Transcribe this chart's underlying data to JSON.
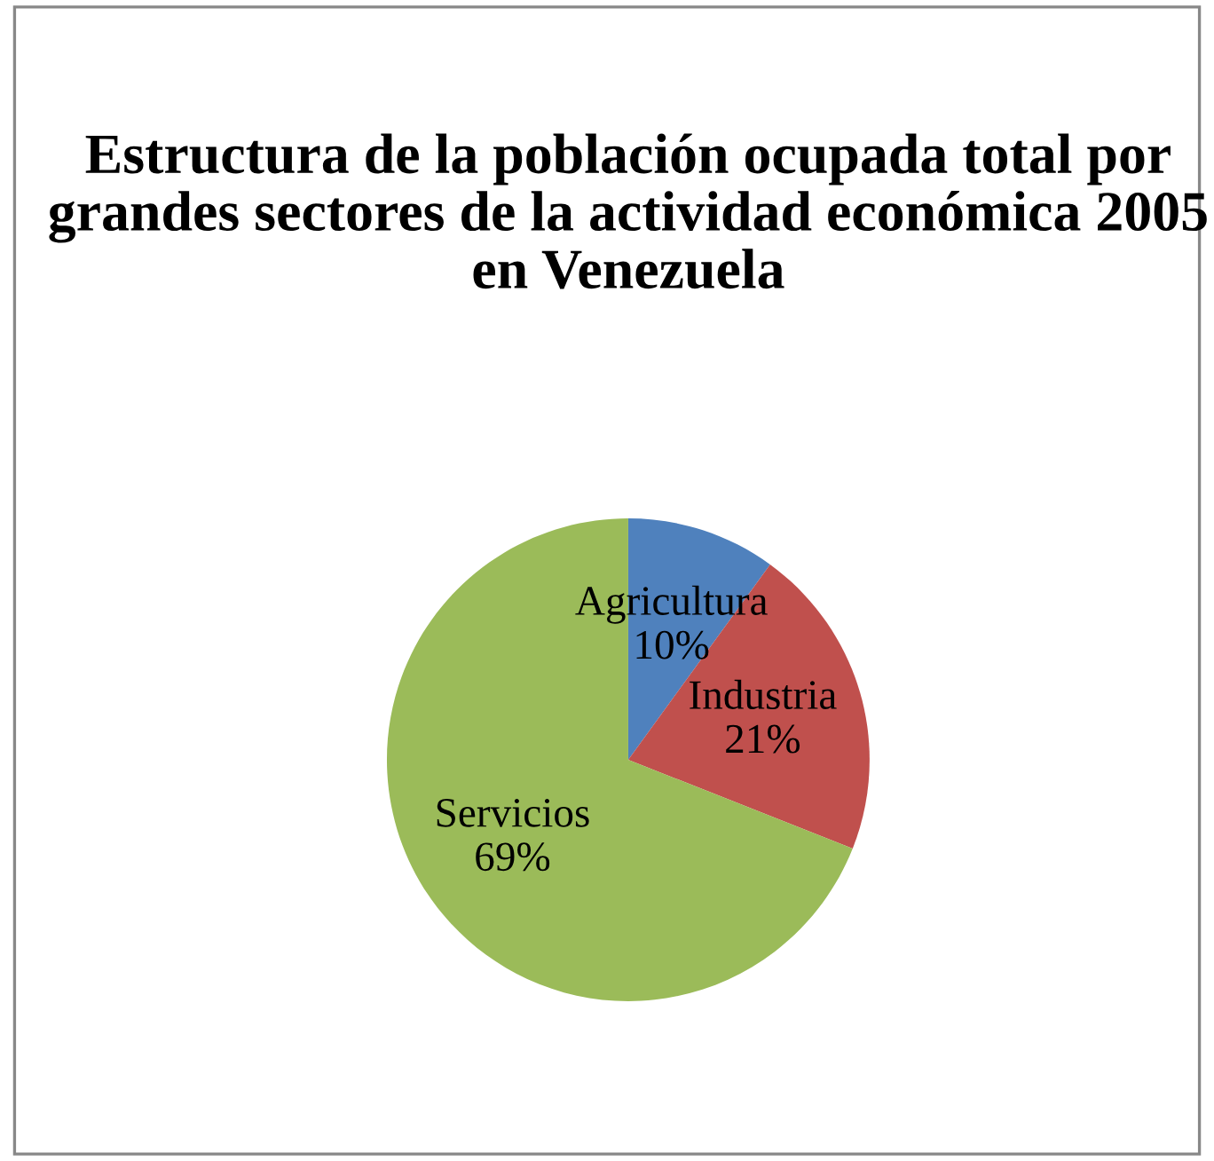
{
  "chart_data": {
    "type": "pie",
    "title": "Estructura de la población ocupada total por grandes sectores de la actividad económica 2005 en Venezuela",
    "categories": [
      "Agricultura",
      "Industria",
      "Servicios"
    ],
    "values": [
      10,
      21,
      69
    ],
    "value_labels": [
      "10%",
      "21%",
      "69%"
    ],
    "colors": [
      "#4f81bd",
      "#c0504d",
      "#9bbb59"
    ],
    "legend": false
  }
}
